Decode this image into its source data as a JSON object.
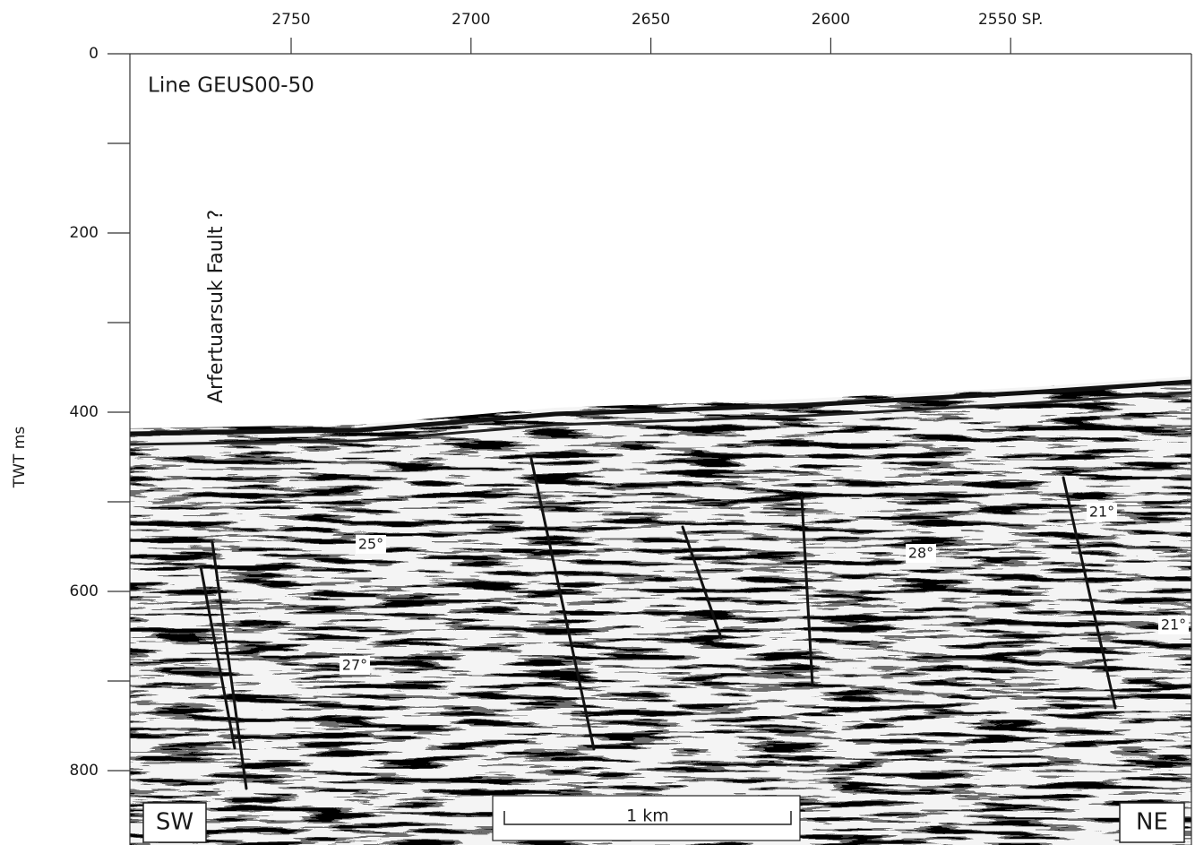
{
  "top_axis": {
    "ticks": [
      "2750",
      "2700",
      "2650",
      "2600",
      "2550 SP."
    ]
  },
  "left_axis": {
    "label": "TWT ms",
    "ticks": [
      "0",
      "200",
      "400",
      "600",
      "800"
    ]
  },
  "annotations": {
    "line_name": "Line GEUS00-50",
    "fault": "Arfertuarsuk Fault ?",
    "angles": [
      "25°",
      "27°",
      "28°",
      "21°",
      "21°"
    ],
    "left_direction": "SW",
    "right_direction": "NE",
    "scale": "1 km"
  }
}
